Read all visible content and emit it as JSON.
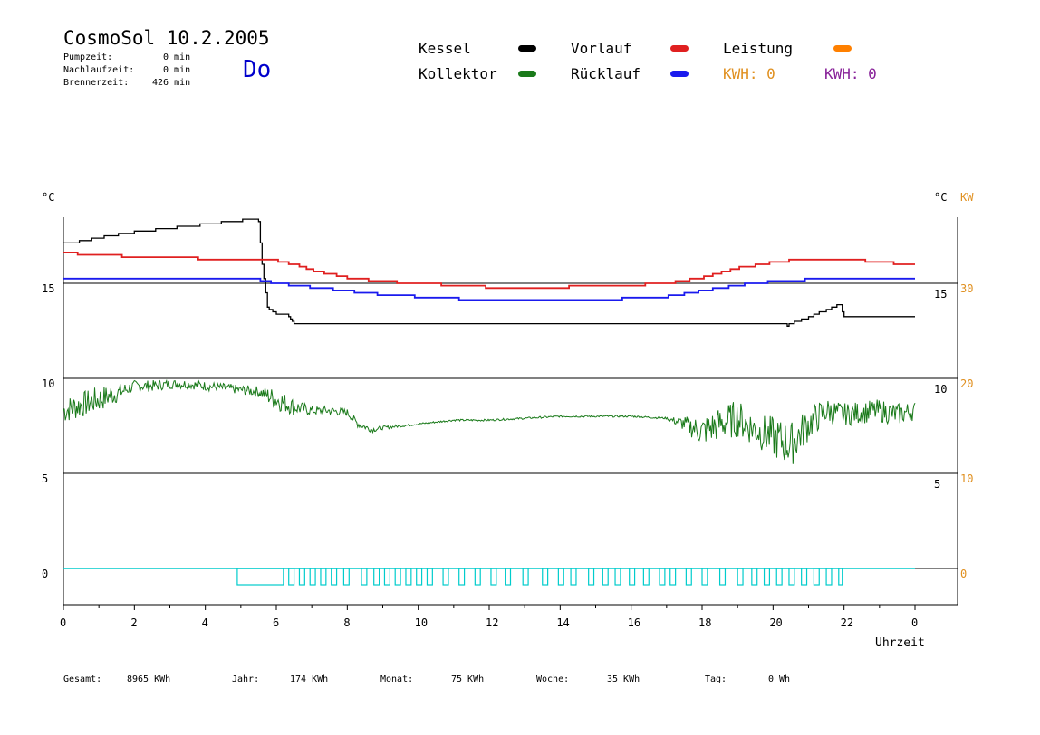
{
  "header": {
    "title": "CosmoSol 10.2.2005",
    "weekday": "Do",
    "stats": [
      {
        "label": "Pumpzeit:",
        "value": "0 min"
      },
      {
        "label": "Nachlaufzeit:",
        "value": "0 min"
      },
      {
        "label": "Brennerzeit:",
        "value": "426 min"
      }
    ]
  },
  "legend": {
    "kessel": "Kessel",
    "kollektor": "Kollektor",
    "vorlauf": "Vorlauf",
    "ruecklauf": "Rücklauf",
    "leistung": "Leistung",
    "kwh_a": "KWH: 0",
    "kwh_b": "KWH: 0"
  },
  "colors": {
    "kessel": "#000000",
    "kollektor": "#1a7a1a",
    "vorlauf": "#e02020",
    "ruecklauf": "#1a1aee",
    "leistung": "#ff8000",
    "kwh_a": "#e09020",
    "kwh_b": "#882299",
    "pump": "#00cccc"
  },
  "footer": {
    "gesamt_label": "Gesamt:",
    "gesamt_value": "8965 KWh",
    "jahr_label": "Jahr:",
    "jahr_value": "174 KWh",
    "monat_label": "Monat:",
    "monat_value": "75 KWh",
    "woche_label": "Woche:",
    "woche_value": "35 KWh",
    "tag_label": "Tag:",
    "tag_value": "0 Wh"
  },
  "chart_data": {
    "type": "line",
    "xlabel": "Uhrzeit",
    "x_ticks": [
      "0",
      "2",
      "4",
      "6",
      "8",
      "10",
      "12",
      "14",
      "16",
      "18",
      "20",
      "22",
      "0"
    ],
    "xlim": [
      0,
      24
    ],
    "y_left_unit": "°C",
    "y_right_unit": "°C",
    "y_right2_unit": "KW",
    "y_left_ticks": [
      "15",
      "10",
      "5",
      "0"
    ],
    "y_right_ticks": [
      "15",
      "10",
      "5"
    ],
    "y_right2_ticks": [
      "30",
      "20",
      "10",
      "0"
    ],
    "ylim": [
      -1.5,
      19
    ],
    "grid": "horizontal at 0, 5, 10, 15",
    "series": [
      {
        "name": "Kessel",
        "x": [
          0,
          0.5,
          1,
          2,
          3,
          4,
          5,
          5.2,
          5.5,
          5.6,
          5.75,
          6,
          6.3,
          6.5,
          20,
          20.4,
          20.6,
          21,
          21.5,
          21.9,
          22,
          24
        ],
        "y": [
          17.1,
          17.2,
          17.4,
          17.7,
          17.9,
          18.1,
          18.3,
          18.4,
          18.3,
          16,
          13.7,
          13.4,
          13.4,
          12.9,
          12.9,
          12.8,
          12.95,
          13.2,
          13.6,
          13.9,
          13.2,
          13.2
        ]
      },
      {
        "name": "Vorlauf",
        "x": [
          0,
          1,
          2,
          4,
          5.5,
          6,
          6.5,
          7,
          7.5,
          8,
          9,
          10,
          12,
          14,
          16,
          17,
          18,
          19,
          20,
          21,
          22,
          23,
          24
        ],
        "y": [
          16.6,
          16.5,
          16.4,
          16.3,
          16.3,
          16.2,
          16.0,
          15.7,
          15.5,
          15.3,
          15.1,
          15.0,
          14.8,
          14.8,
          14.9,
          15.0,
          15.3,
          15.8,
          16.1,
          16.3,
          16.3,
          16.1,
          16.0
        ]
      },
      {
        "name": "Rücklauf",
        "x": [
          0,
          1,
          2,
          4,
          5.5,
          6,
          7,
          8,
          9,
          10,
          12,
          14,
          16,
          17,
          18,
          19,
          20,
          21,
          22,
          23,
          24
        ],
        "y": [
          15.3,
          15.3,
          15.3,
          15.3,
          15.2,
          15.0,
          14.8,
          14.6,
          14.4,
          14.3,
          14.1,
          14.1,
          14.2,
          14.3,
          14.6,
          14.9,
          15.1,
          15.2,
          15.2,
          15.2,
          15.2
        ]
      },
      {
        "name": "Kollektor",
        "x": [
          0,
          0.5,
          1,
          1.5,
          2,
          2.5,
          3,
          3.5,
          4,
          4.5,
          5,
          5.5,
          6,
          6.5,
          7,
          7.5,
          8,
          8.3,
          8.7,
          9,
          10,
          11,
          12,
          13,
          14,
          15,
          16,
          17,
          17.5,
          18,
          18.5,
          19,
          19.5,
          20,
          20.5,
          21,
          21.5,
          22,
          22.5,
          23,
          23.5,
          24
        ],
        "y": [
          8.3,
          8.6,
          8.9,
          9.2,
          9.6,
          9.6,
          9.7,
          9.7,
          9.6,
          9.5,
          9.4,
          9.3,
          8.9,
          8.5,
          8.3,
          8.3,
          8.2,
          7.6,
          7.3,
          7.4,
          7.6,
          7.8,
          7.8,
          7.9,
          8.0,
          8.0,
          8.0,
          7.9,
          7.6,
          7.2,
          7.6,
          7.9,
          7.3,
          6.9,
          6.5,
          7.6,
          8.3,
          8.1,
          8.2,
          8.3,
          8.1,
          8.3
        ],
        "noise": [
          0.7,
          0.7,
          0.7,
          0.5,
          0.3,
          0.3,
          0.25,
          0.25,
          0.25,
          0.25,
          0.25,
          0.3,
          0.6,
          0.45,
          0.25,
          0.25,
          0.2,
          0.2,
          0.15,
          0.1,
          0.05,
          0.05,
          0.05,
          0.05,
          0.05,
          0.05,
          0.05,
          0.05,
          0.4,
          0.8,
          0.9,
          1.0,
          0.9,
          1.1,
          1.2,
          0.9,
          0.7,
          0.6,
          0.6,
          0.6,
          0.6,
          0.5
        ]
      }
    ],
    "pump_pulses_start": [
      4.9,
      6.35,
      6.65,
      6.95,
      7.25,
      7.55,
      7.9,
      8.4,
      8.75,
      9.05,
      9.35,
      9.65,
      9.95,
      10.25,
      10.7,
      11.15,
      11.6,
      12.05,
      12.45,
      12.95,
      13.5,
      13.95,
      14.3,
      14.8,
      15.2,
      15.55,
      15.95,
      16.35,
      16.8,
      17.1,
      17.55,
      18.0,
      18.5,
      19.0,
      19.4,
      19.75,
      20.1,
      20.45,
      20.8,
      21.15,
      21.5,
      21.85
    ],
    "pump_pulses_width": [
      1.3,
      0.15,
      0.15,
      0.15,
      0.15,
      0.15,
      0.15,
      0.15,
      0.15,
      0.15,
      0.15,
      0.15,
      0.15,
      0.15,
      0.15,
      0.15,
      0.15,
      0.15,
      0.15,
      0.15,
      0.15,
      0.15,
      0.15,
      0.15,
      0.15,
      0.15,
      0.15,
      0.15,
      0.15,
      0.15,
      0.15,
      0.15,
      0.15,
      0.15,
      0.15,
      0.15,
      0.15,
      0.15,
      0.15,
      0.15,
      0.15,
      0.1
    ]
  }
}
